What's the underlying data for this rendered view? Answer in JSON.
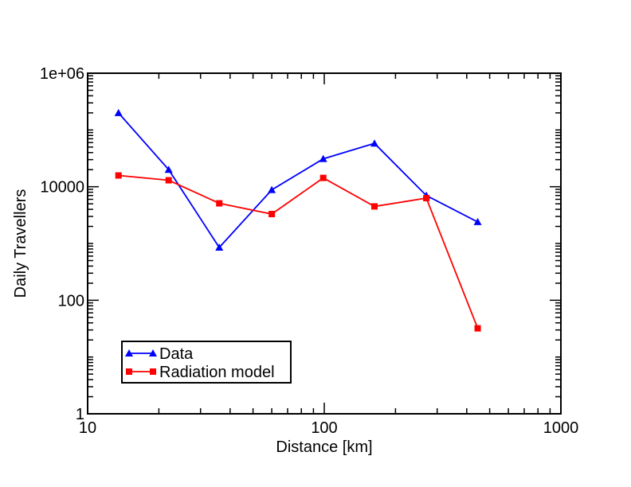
{
  "chart_data": {
    "type": "line",
    "xlabel": "Distance [km]",
    "ylabel": "Daily Travellers",
    "x_scale": "log",
    "y_scale": "log",
    "xlim": [
      10,
      1000
    ],
    "ylim": [
      1,
      1000000
    ],
    "x_ticks": [
      {
        "value": 10,
        "label": "10"
      },
      {
        "value": 100,
        "label": "100"
      },
      {
        "value": 1000,
        "label": "1000"
      }
    ],
    "y_ticks": [
      {
        "value": 1,
        "label": "1"
      },
      {
        "value": 100,
        "label": "100"
      },
      {
        "value": 10000,
        "label": "10000"
      },
      {
        "value": 1000000,
        "label": "1e+06"
      }
    ],
    "legend_position": "bottom-left",
    "grid": false,
    "series": [
      {
        "name": "Data",
        "color": "#0000ff",
        "marker": "triangle",
        "x": [
          13.5,
          22,
          36,
          60,
          99,
          163,
          270,
          445
        ],
        "y": [
          200000,
          20000,
          850,
          8800,
          31000,
          58000,
          7000,
          2400
        ]
      },
      {
        "name": "Radiation model",
        "color": "#ff0000",
        "marker": "square",
        "x": [
          13.5,
          22,
          36,
          60,
          99,
          163,
          270,
          445
        ],
        "y": [
          15800,
          13000,
          5100,
          3300,
          14300,
          4500,
          6300,
          32
        ]
      }
    ]
  }
}
